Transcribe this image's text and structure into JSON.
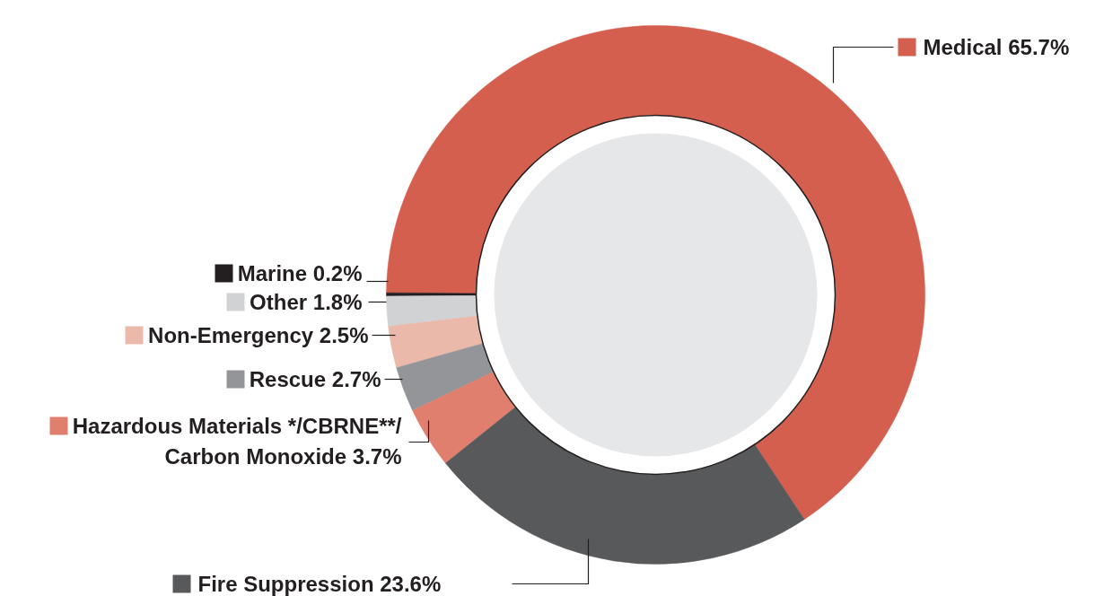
{
  "chart_data": {
    "type": "donut",
    "categories": [
      "Medical",
      "Marine",
      "Other",
      "Non-Emergency",
      "Rescue",
      "Hazardous Materials */CBRNE**/ Carbon Monoxide",
      "Fire Suppression"
    ],
    "values": [
      65.7,
      0.2,
      1.8,
      2.5,
      2.7,
      3.7,
      23.6
    ],
    "value_labels": [
      "65.7%",
      "0.2%",
      "1.8%",
      "2.5%",
      "2.7%",
      "3.7%",
      "23.6%"
    ],
    "legend": "left",
    "colors": [
      "#d45f4f",
      "#231f20",
      "#d1d2d4",
      "#ebb9aa",
      "#939598",
      "#e07f6e",
      "#58595b"
    ]
  }
}
